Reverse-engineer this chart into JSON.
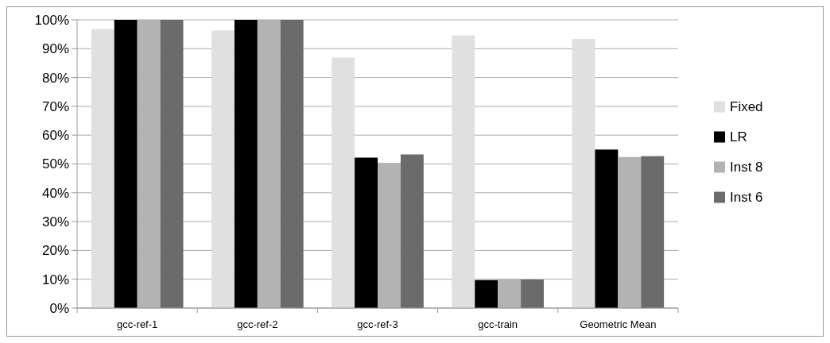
{
  "chart_data": {
    "type": "bar",
    "categories": [
      "gcc-ref-1",
      "gcc-ref-2",
      "gcc-ref-3",
      "gcc-train",
      "Geometric Mean"
    ],
    "series": [
      {
        "name": "Fixed",
        "color": "#e0e0e0",
        "values": [
          96.8,
          96.3,
          86.9,
          94.6,
          93.4
        ]
      },
      {
        "name": "LR",
        "color": "#000000",
        "values": [
          100,
          100,
          52.2,
          9.7,
          55.0
        ]
      },
      {
        "name": "Inst 8",
        "color": "#b3b3b3",
        "values": [
          100,
          100,
          50.4,
          10.1,
          52.4
        ]
      },
      {
        "name": "Inst 6",
        "color": "#6b6b6b",
        "values": [
          100,
          100,
          53.3,
          9.9,
          52.7
        ]
      }
    ],
    "ylim": [
      0,
      100
    ],
    "yticks": [
      {
        "value": 0,
        "label": "0%"
      },
      {
        "value": 10,
        "label": "10%"
      },
      {
        "value": 20,
        "label": "20%"
      },
      {
        "value": 30,
        "label": "30%"
      },
      {
        "value": 40,
        "label": "40%"
      },
      {
        "value": 50,
        "label": "50%"
      },
      {
        "value": 60,
        "label": "60%"
      },
      {
        "value": 70,
        "label": "70%"
      },
      {
        "value": 80,
        "label": "80%"
      },
      {
        "value": 90,
        "label": "90%"
      },
      {
        "value": 100,
        "label": "100%"
      }
    ],
    "grid": "y",
    "legend": "right"
  }
}
